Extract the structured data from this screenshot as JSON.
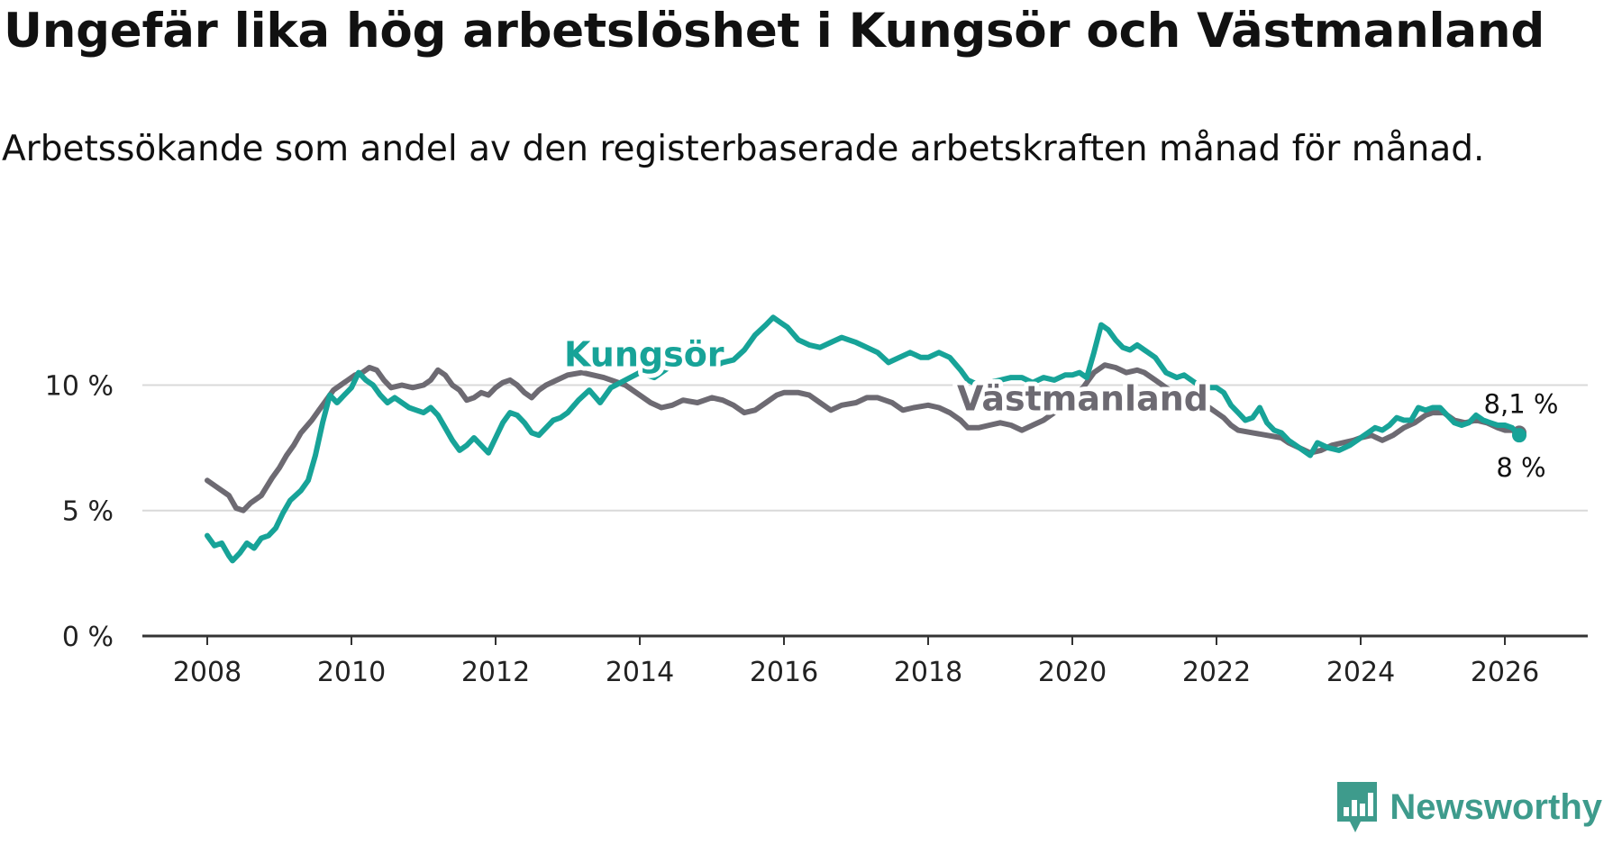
{
  "title": "Ungefär lika hög arbetslöshet i Kungsör och Västmanland",
  "subtitle": "Arbetssökande som andel av den registerbaserade arbetskraften månad för månad.",
  "brand": {
    "name": "Newsworthy",
    "icon": "newsworthy-logo-icon",
    "color": "#3e9b8c"
  },
  "chart_data": {
    "type": "line",
    "title": "Ungefär lika hög arbetslöshet i Kungsör och Västmanland",
    "xlabel": "",
    "ylabel": "",
    "xlim": [
      2007.55,
      2027.0
    ],
    "ylim": [
      0,
      13.5
    ],
    "y_ticks": [
      0,
      5,
      10
    ],
    "y_tick_labels": [
      "0 %",
      "5 %",
      "10 %"
    ],
    "x_ticks": [
      2008,
      2010,
      2012,
      2014,
      2016,
      2018,
      2020,
      2022,
      2024,
      2026
    ],
    "x_tick_labels": [
      "2008",
      "2010",
      "2012",
      "2014",
      "2016",
      "2018",
      "2020",
      "2022",
      "2024",
      "2026"
    ],
    "grid": "horizontal",
    "series": [
      {
        "name": "Västmanland",
        "label": "Västmanland",
        "color": "#6d6a72",
        "end_label": "8,1 %",
        "points": [
          [
            2008.0,
            6.2
          ],
          [
            2008.15,
            5.9
          ],
          [
            2008.3,
            5.6
          ],
          [
            2008.4,
            5.1
          ],
          [
            2008.5,
            5.0
          ],
          [
            2008.6,
            5.3
          ],
          [
            2008.75,
            5.6
          ],
          [
            2008.9,
            6.3
          ],
          [
            2009.0,
            6.7
          ],
          [
            2009.1,
            7.2
          ],
          [
            2009.2,
            7.6
          ],
          [
            2009.3,
            8.1
          ],
          [
            2009.45,
            8.6
          ],
          [
            2009.55,
            9.0
          ],
          [
            2009.65,
            9.4
          ],
          [
            2009.75,
            9.8
          ],
          [
            2009.85,
            10.0
          ],
          [
            2009.95,
            10.2
          ],
          [
            2010.05,
            10.4
          ],
          [
            2010.15,
            10.5
          ],
          [
            2010.25,
            10.7
          ],
          [
            2010.35,
            10.6
          ],
          [
            2010.45,
            10.2
          ],
          [
            2010.55,
            9.9
          ],
          [
            2010.7,
            10.0
          ],
          [
            2010.85,
            9.9
          ],
          [
            2011.0,
            10.0
          ],
          [
            2011.1,
            10.2
          ],
          [
            2011.2,
            10.6
          ],
          [
            2011.3,
            10.4
          ],
          [
            2011.4,
            10.0
          ],
          [
            2011.5,
            9.8
          ],
          [
            2011.6,
            9.4
          ],
          [
            2011.7,
            9.5
          ],
          [
            2011.8,
            9.7
          ],
          [
            2011.9,
            9.6
          ],
          [
            2012.0,
            9.9
          ],
          [
            2012.1,
            10.1
          ],
          [
            2012.2,
            10.2
          ],
          [
            2012.3,
            10.0
          ],
          [
            2012.4,
            9.7
          ],
          [
            2012.5,
            9.5
          ],
          [
            2012.6,
            9.8
          ],
          [
            2012.7,
            10.0
          ],
          [
            2012.85,
            10.2
          ],
          [
            2013.0,
            10.4
          ],
          [
            2013.2,
            10.5
          ],
          [
            2013.5,
            10.3
          ],
          [
            2013.8,
            10.0
          ],
          [
            2014.0,
            9.6
          ],
          [
            2014.15,
            9.3
          ],
          [
            2014.3,
            9.1
          ],
          [
            2014.45,
            9.2
          ],
          [
            2014.6,
            9.4
          ],
          [
            2014.8,
            9.3
          ],
          [
            2015.0,
            9.5
          ],
          [
            2015.15,
            9.4
          ],
          [
            2015.3,
            9.2
          ],
          [
            2015.45,
            8.9
          ],
          [
            2015.6,
            9.0
          ],
          [
            2015.75,
            9.3
          ],
          [
            2015.9,
            9.6
          ],
          [
            2016.0,
            9.7
          ],
          [
            2016.2,
            9.7
          ],
          [
            2016.35,
            9.6
          ],
          [
            2016.5,
            9.3
          ],
          [
            2016.65,
            9.0
          ],
          [
            2016.8,
            9.2
          ],
          [
            2017.0,
            9.3
          ],
          [
            2017.15,
            9.5
          ],
          [
            2017.3,
            9.5
          ],
          [
            2017.5,
            9.3
          ],
          [
            2017.65,
            9.0
          ],
          [
            2017.8,
            9.1
          ],
          [
            2018.0,
            9.2
          ],
          [
            2018.15,
            9.1
          ],
          [
            2018.3,
            8.9
          ],
          [
            2018.45,
            8.6
          ],
          [
            2018.55,
            8.3
          ],
          [
            2018.7,
            8.3
          ],
          [
            2018.85,
            8.4
          ],
          [
            2019.0,
            8.5
          ],
          [
            2019.15,
            8.4
          ],
          [
            2019.3,
            8.2
          ],
          [
            2019.45,
            8.4
          ],
          [
            2019.6,
            8.6
          ],
          [
            2019.75,
            8.9
          ],
          [
            2019.9,
            9.2
          ],
          [
            2020.0,
            9.5
          ],
          [
            2020.15,
            9.9
          ],
          [
            2020.3,
            10.5
          ],
          [
            2020.45,
            10.8
          ],
          [
            2020.6,
            10.7
          ],
          [
            2020.75,
            10.5
          ],
          [
            2020.9,
            10.6
          ],
          [
            2021.0,
            10.5
          ],
          [
            2021.15,
            10.2
          ],
          [
            2021.3,
            9.9
          ],
          [
            2021.45,
            9.6
          ],
          [
            2021.6,
            9.4
          ],
          [
            2021.75,
            9.3
          ],
          [
            2021.9,
            9.1
          ],
          [
            2022.0,
            8.9
          ],
          [
            2022.1,
            8.7
          ],
          [
            2022.2,
            8.4
          ],
          [
            2022.3,
            8.2
          ],
          [
            2022.5,
            8.1
          ],
          [
            2022.7,
            8.0
          ],
          [
            2022.9,
            7.9
          ],
          [
            2023.0,
            7.7
          ],
          [
            2023.15,
            7.5
          ],
          [
            2023.3,
            7.3
          ],
          [
            2023.45,
            7.4
          ],
          [
            2023.6,
            7.6
          ],
          [
            2023.75,
            7.7
          ],
          [
            2023.9,
            7.8
          ],
          [
            2024.0,
            7.9
          ],
          [
            2024.15,
            8.0
          ],
          [
            2024.3,
            7.8
          ],
          [
            2024.45,
            8.0
          ],
          [
            2024.6,
            8.3
          ],
          [
            2024.75,
            8.5
          ],
          [
            2024.9,
            8.8
          ],
          [
            2025.0,
            8.9
          ],
          [
            2025.15,
            8.9
          ],
          [
            2025.3,
            8.6
          ],
          [
            2025.45,
            8.5
          ],
          [
            2025.6,
            8.6
          ],
          [
            2025.75,
            8.5
          ],
          [
            2025.9,
            8.3
          ],
          [
            2026.0,
            8.2
          ],
          [
            2026.1,
            8.2
          ],
          [
            2026.2,
            8.1
          ]
        ]
      },
      {
        "name": "Kungsör",
        "label": "Kungsör",
        "color": "#17a398",
        "end_label": "8 %",
        "points": [
          [
            2008.0,
            4.0
          ],
          [
            2008.1,
            3.6
          ],
          [
            2008.2,
            3.7
          ],
          [
            2008.3,
            3.2
          ],
          [
            2008.35,
            3.0
          ],
          [
            2008.45,
            3.3
          ],
          [
            2008.55,
            3.7
          ],
          [
            2008.65,
            3.5
          ],
          [
            2008.75,
            3.9
          ],
          [
            2008.85,
            4.0
          ],
          [
            2008.95,
            4.3
          ],
          [
            2009.05,
            4.9
          ],
          [
            2009.15,
            5.4
          ],
          [
            2009.3,
            5.8
          ],
          [
            2009.4,
            6.2
          ],
          [
            2009.5,
            7.2
          ],
          [
            2009.6,
            8.5
          ],
          [
            2009.7,
            9.6
          ],
          [
            2009.8,
            9.3
          ],
          [
            2009.9,
            9.6
          ],
          [
            2010.0,
            9.9
          ],
          [
            2010.1,
            10.5
          ],
          [
            2010.2,
            10.2
          ],
          [
            2010.3,
            10.0
          ],
          [
            2010.4,
            9.6
          ],
          [
            2010.5,
            9.3
          ],
          [
            2010.6,
            9.5
          ],
          [
            2010.7,
            9.3
          ],
          [
            2010.8,
            9.1
          ],
          [
            2010.9,
            9.0
          ],
          [
            2011.0,
            8.9
          ],
          [
            2011.1,
            9.1
          ],
          [
            2011.2,
            8.8
          ],
          [
            2011.3,
            8.3
          ],
          [
            2011.4,
            7.8
          ],
          [
            2011.5,
            7.4
          ],
          [
            2011.6,
            7.6
          ],
          [
            2011.7,
            7.9
          ],
          [
            2011.8,
            7.6
          ],
          [
            2011.9,
            7.3
          ],
          [
            2012.0,
            7.9
          ],
          [
            2012.1,
            8.5
          ],
          [
            2012.2,
            8.9
          ],
          [
            2012.3,
            8.8
          ],
          [
            2012.4,
            8.5
          ],
          [
            2012.5,
            8.1
          ],
          [
            2012.6,
            8.0
          ],
          [
            2012.7,
            8.3
          ],
          [
            2012.8,
            8.6
          ],
          [
            2012.9,
            8.7
          ],
          [
            2013.0,
            8.9
          ],
          [
            2013.15,
            9.4
          ],
          [
            2013.3,
            9.8
          ],
          [
            2013.45,
            9.3
          ],
          [
            2013.6,
            9.9
          ],
          [
            2013.8,
            10.2
          ],
          [
            2014.0,
            10.5
          ],
          [
            2014.2,
            10.3
          ],
          [
            2014.4,
            10.7
          ],
          [
            2014.6,
            10.9
          ],
          [
            2014.8,
            11.1
          ],
          [
            2015.0,
            10.7
          ],
          [
            2015.15,
            10.9
          ],
          [
            2015.3,
            11.0
          ],
          [
            2015.45,
            11.4
          ],
          [
            2015.6,
            12.0
          ],
          [
            2015.75,
            12.4
          ],
          [
            2015.85,
            12.7
          ],
          [
            2015.95,
            12.5
          ],
          [
            2016.05,
            12.3
          ],
          [
            2016.2,
            11.8
          ],
          [
            2016.35,
            11.6
          ],
          [
            2016.5,
            11.5
          ],
          [
            2016.65,
            11.7
          ],
          [
            2016.8,
            11.9
          ],
          [
            2017.0,
            11.7
          ],
          [
            2017.15,
            11.5
          ],
          [
            2017.3,
            11.3
          ],
          [
            2017.45,
            10.9
          ],
          [
            2017.6,
            11.1
          ],
          [
            2017.75,
            11.3
          ],
          [
            2017.9,
            11.1
          ],
          [
            2018.0,
            11.1
          ],
          [
            2018.15,
            11.3
          ],
          [
            2018.3,
            11.1
          ],
          [
            2018.45,
            10.6
          ],
          [
            2018.55,
            10.2
          ],
          [
            2018.7,
            10.0
          ],
          [
            2018.85,
            10.1
          ],
          [
            2019.0,
            10.2
          ],
          [
            2019.15,
            10.3
          ],
          [
            2019.3,
            10.3
          ],
          [
            2019.45,
            10.1
          ],
          [
            2019.6,
            10.3
          ],
          [
            2019.75,
            10.2
          ],
          [
            2019.9,
            10.4
          ],
          [
            2020.0,
            10.4
          ],
          [
            2020.1,
            10.5
          ],
          [
            2020.2,
            10.3
          ],
          [
            2020.3,
            11.3
          ],
          [
            2020.4,
            12.4
          ],
          [
            2020.5,
            12.2
          ],
          [
            2020.6,
            11.8
          ],
          [
            2020.7,
            11.5
          ],
          [
            2020.8,
            11.4
          ],
          [
            2020.9,
            11.6
          ],
          [
            2021.0,
            11.4
          ],
          [
            2021.15,
            11.1
          ],
          [
            2021.3,
            10.5
          ],
          [
            2021.45,
            10.3
          ],
          [
            2021.55,
            10.4
          ],
          [
            2021.7,
            10.1
          ],
          [
            2021.85,
            9.9
          ],
          [
            2022.0,
            9.9
          ],
          [
            2022.1,
            9.7
          ],
          [
            2022.2,
            9.2
          ],
          [
            2022.3,
            8.9
          ],
          [
            2022.4,
            8.6
          ],
          [
            2022.5,
            8.7
          ],
          [
            2022.6,
            9.1
          ],
          [
            2022.7,
            8.5
          ],
          [
            2022.8,
            8.2
          ],
          [
            2022.9,
            8.1
          ],
          [
            2023.0,
            7.8
          ],
          [
            2023.1,
            7.6
          ],
          [
            2023.2,
            7.4
          ],
          [
            2023.3,
            7.2
          ],
          [
            2023.4,
            7.7
          ],
          [
            2023.55,
            7.5
          ],
          [
            2023.7,
            7.4
          ],
          [
            2023.85,
            7.6
          ],
          [
            2024.0,
            7.9
          ],
          [
            2024.1,
            8.1
          ],
          [
            2024.2,
            8.3
          ],
          [
            2024.3,
            8.2
          ],
          [
            2024.4,
            8.4
          ],
          [
            2024.5,
            8.7
          ],
          [
            2024.6,
            8.6
          ],
          [
            2024.7,
            8.6
          ],
          [
            2024.8,
            9.1
          ],
          [
            2024.9,
            9.0
          ],
          [
            2025.0,
            9.1
          ],
          [
            2025.1,
            9.1
          ],
          [
            2025.2,
            8.8
          ],
          [
            2025.3,
            8.5
          ],
          [
            2025.4,
            8.4
          ],
          [
            2025.5,
            8.5
          ],
          [
            2025.6,
            8.8
          ],
          [
            2025.7,
            8.6
          ],
          [
            2025.8,
            8.5
          ],
          [
            2025.9,
            8.4
          ],
          [
            2026.0,
            8.4
          ],
          [
            2026.1,
            8.3
          ],
          [
            2026.2,
            8.0
          ]
        ]
      }
    ]
  }
}
